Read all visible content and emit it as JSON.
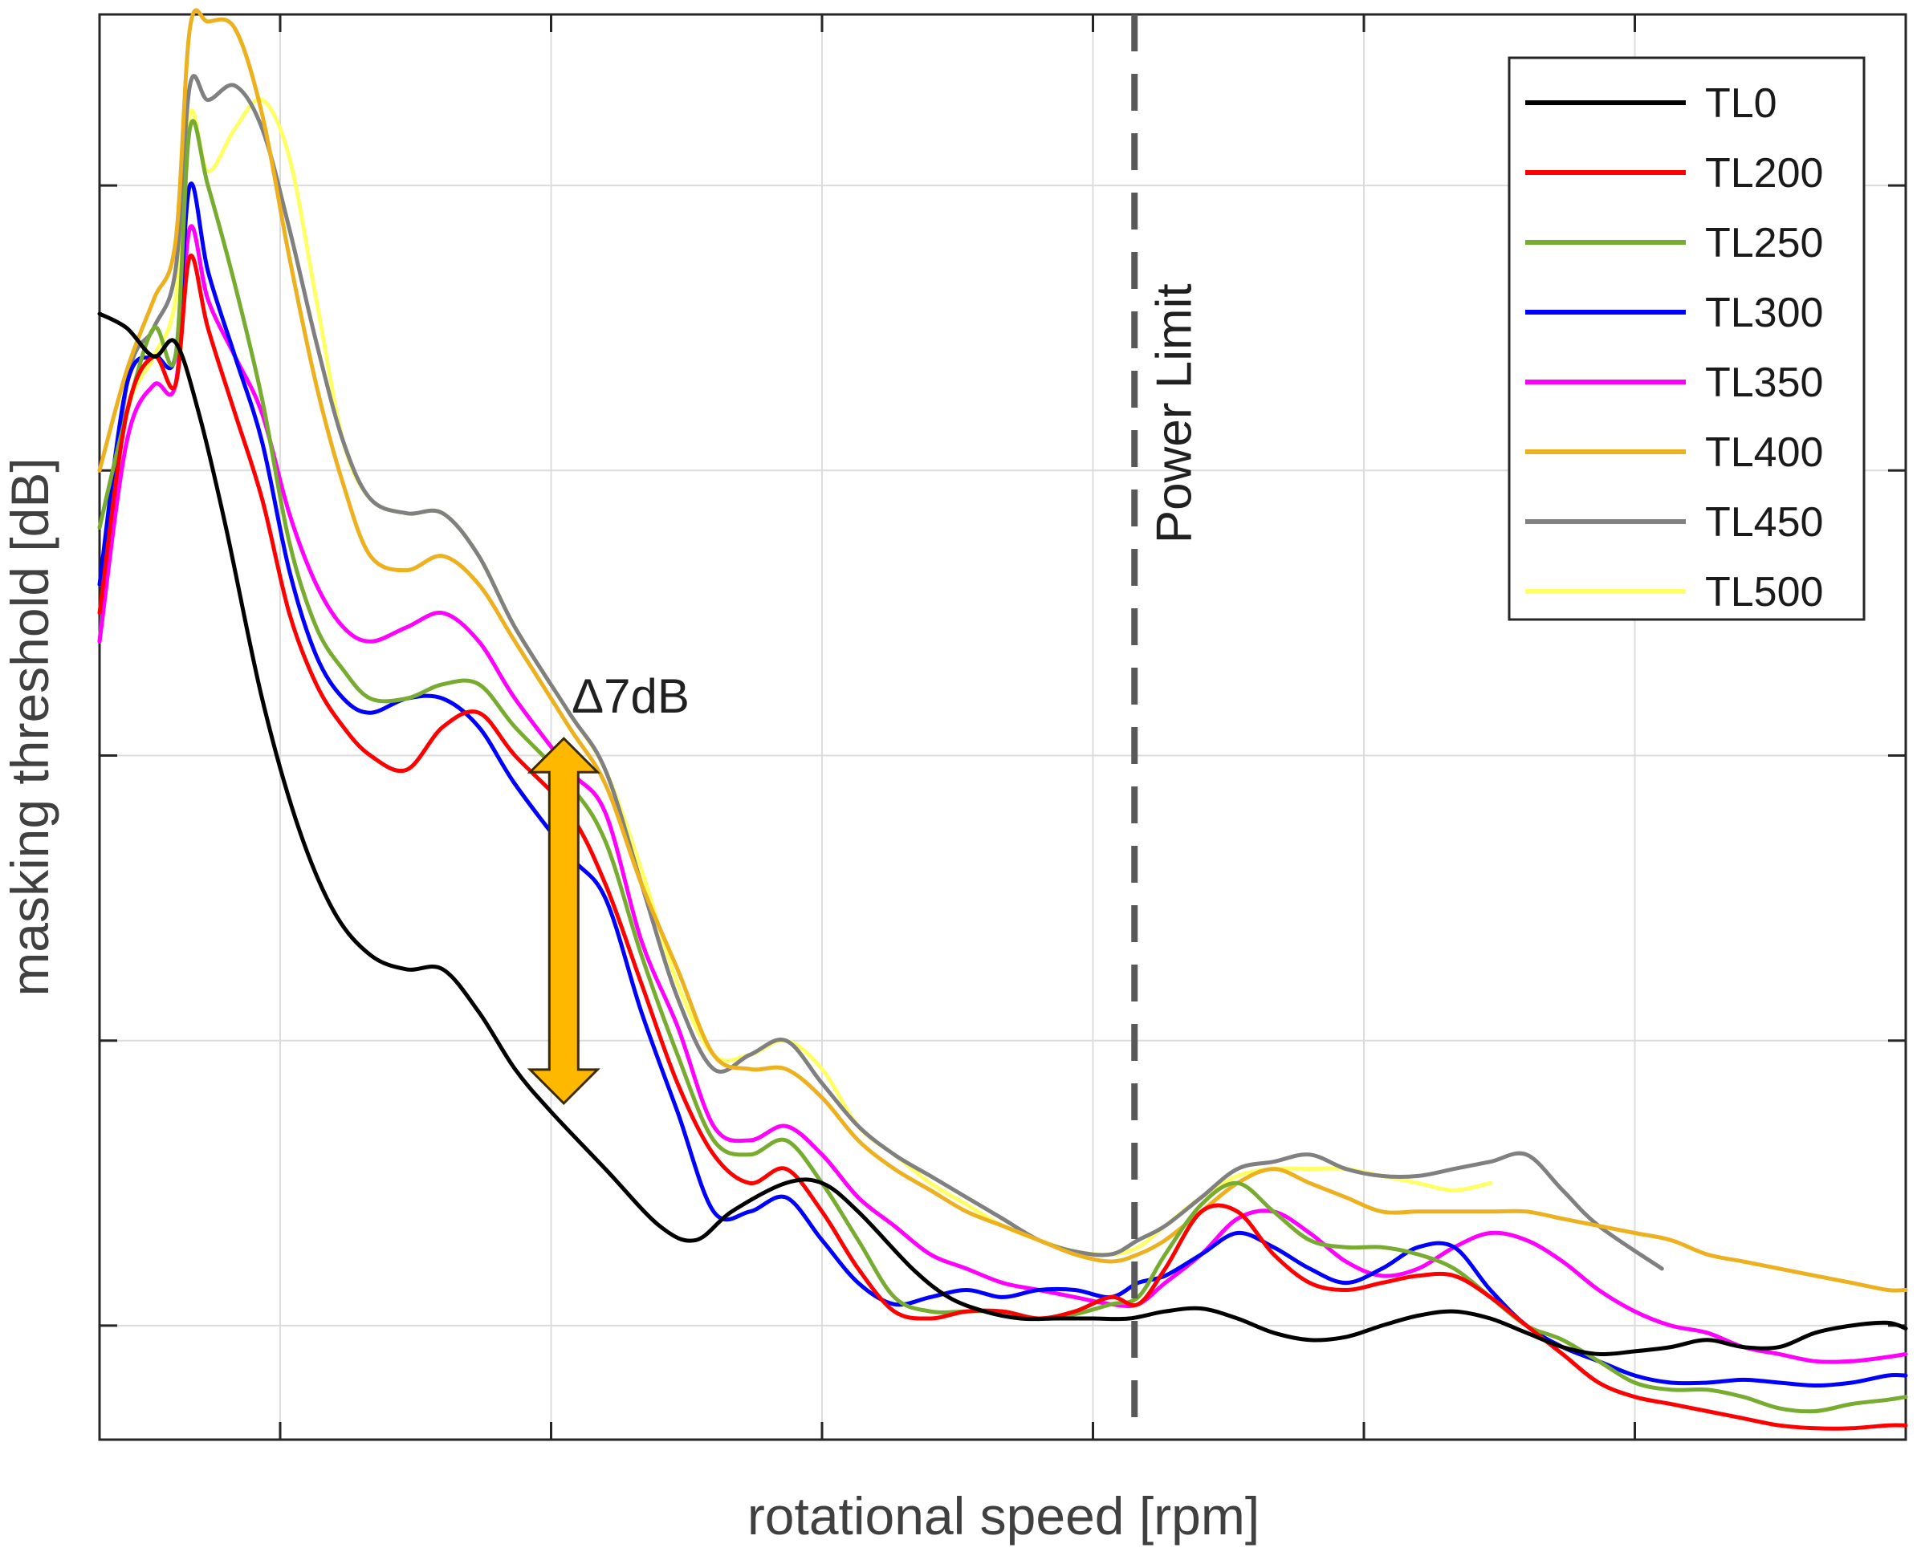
{
  "chart_data": {
    "type": "line",
    "title": "",
    "xlabel": "rotational speed [rpm]",
    "ylabel": "masking threshold [dB]",
    "xlim": [
      0,
      100
    ],
    "ylim": [
      0,
      100
    ],
    "grid": true,
    "tick_labels_visible": false,
    "x_grid": [
      10,
      25,
      40,
      55,
      70,
      85
    ],
    "y_grid": [
      8,
      28,
      48,
      68,
      88
    ],
    "legend_position": "top-right",
    "annotations": {
      "delta": "Δ7dB",
      "power_limit": "Power Limit",
      "power_limit_x": 57.3,
      "arrow_top": 49.2,
      "arrow_bottom": 23.6,
      "arrow_x": 25.7,
      "arrow_color": "#FFB800"
    },
    "series": [
      {
        "name": "TL0",
        "color": "#000000",
        "x": [
          0,
          1.5,
          3,
          4.2,
          5.5,
          7,
          9,
          11,
          13,
          15,
          17,
          19,
          21,
          23,
          25,
          28,
          31,
          33,
          35,
          38,
          40,
          42,
          45,
          47,
          49,
          51,
          53,
          55,
          57,
          59,
          61,
          63,
          65,
          67,
          69,
          71,
          73,
          75,
          77,
          79,
          81,
          83,
          85,
          87,
          89,
          91,
          93,
          95,
          97,
          99,
          100
        ],
        "y": [
          79,
          78,
          76,
          77,
          72,
          64,
          52,
          43,
          37,
          34,
          33,
          33,
          30,
          26,
          23,
          19,
          15,
          14,
          16,
          18,
          18,
          16,
          12,
          10,
          9,
          8.5,
          8.5,
          8.5,
          8.5,
          9,
          9.2,
          8.5,
          7.5,
          7,
          7.2,
          8,
          8.7,
          9,
          8.5,
          7.5,
          6.5,
          6,
          6.2,
          6.5,
          7,
          6.5,
          6.5,
          7.5,
          8,
          8.2,
          7.8
        ]
      },
      {
        "name": "TL200",
        "color": "#FF0000",
        "x": [
          0,
          1.5,
          3,
          4.2,
          5,
          6,
          7.5,
          9,
          10.5,
          12,
          13.5,
          15,
          17,
          19,
          21,
          23,
          26,
          28,
          30,
          32,
          34,
          36,
          38,
          40,
          42,
          44,
          46,
          48,
          50,
          52,
          54,
          56,
          57.5,
          59,
          61,
          63,
          65,
          67,
          69,
          71,
          73,
          75,
          77,
          79,
          81,
          83,
          85,
          87,
          89,
          91,
          93,
          95,
          97,
          99,
          100
        ],
        "y": [
          58,
          72,
          76,
          74,
          83,
          78,
          72,
          66,
          58,
          53,
          50,
          48,
          47,
          50,
          51,
          48,
          44,
          39,
          32,
          25,
          20,
          18,
          19,
          16,
          12,
          9,
          8.5,
          9,
          9,
          8.5,
          9,
          10,
          9.5,
          12,
          16,
          16,
          13,
          11,
          10.5,
          11,
          11.5,
          11.5,
          10,
          8,
          6,
          4,
          3,
          2.5,
          2,
          1.5,
          1,
          0.8,
          0.8,
          1,
          1
        ]
      },
      {
        "name": "TL250",
        "color": "#77AC30",
        "x": [
          0,
          1.5,
          3,
          4.2,
          5,
          6,
          7.5,
          9,
          10.5,
          12,
          13.5,
          15,
          17,
          19,
          21,
          23,
          26,
          28,
          30,
          32,
          34,
          36,
          38,
          40,
          42,
          44,
          46,
          48,
          50,
          52,
          54,
          56,
          57.5,
          59,
          61,
          63,
          65,
          67,
          69,
          71,
          73,
          75,
          77,
          79,
          81,
          83,
          85,
          87,
          89,
          91,
          93,
          95,
          97,
          99,
          100
        ],
        "y": [
          64,
          72,
          78,
          76,
          92,
          88,
          81,
          73,
          63,
          57,
          54,
          52,
          52,
          53,
          53,
          50,
          46,
          42,
          34,
          27,
          21,
          20,
          21,
          18,
          14,
          10,
          9,
          9,
          9,
          8.5,
          8.8,
          9.5,
          10,
          13,
          16.5,
          18,
          16,
          14,
          13.5,
          13.5,
          13,
          12,
          10,
          8,
          7,
          5.5,
          4,
          3.5,
          3.5,
          3,
          2.2,
          2,
          2.5,
          2.8,
          3
        ]
      },
      {
        "name": "TL300",
        "color": "#0000FF",
        "x": [
          0,
          1.5,
          3,
          4.2,
          5,
          6,
          7.5,
          9,
          10.5,
          12,
          13.5,
          15,
          17,
          19,
          21,
          23,
          26,
          28,
          30,
          32,
          34,
          36,
          38,
          40,
          42,
          44,
          46,
          48,
          50,
          52,
          54,
          56,
          57.5,
          59,
          61,
          63,
          65,
          67,
          69,
          71,
          73,
          75,
          77,
          79,
          81,
          83,
          85,
          87,
          89,
          91,
          93,
          95,
          97,
          99,
          100
        ],
        "y": [
          60,
          74,
          76,
          76,
          88,
          82,
          76,
          70,
          61,
          55,
          52,
          51,
          52,
          52,
          50,
          46,
          41,
          38,
          30,
          23,
          16,
          16,
          17,
          14,
          11,
          9.5,
          10,
          10.5,
          10,
          10.5,
          10.5,
          10,
          11,
          11.5,
          13,
          14.5,
          13.5,
          12,
          11,
          12,
          13.5,
          13.5,
          10.5,
          8,
          6.5,
          5.5,
          4.5,
          4,
          4,
          4.2,
          4,
          3.8,
          4,
          4.5,
          4.5
        ]
      },
      {
        "name": "TL350",
        "color": "#FF00FF",
        "x": [
          0,
          1.5,
          3,
          4.2,
          5,
          6,
          7.5,
          9,
          10.5,
          12,
          13.5,
          15,
          17,
          19,
          21,
          23,
          26,
          28,
          30,
          32,
          34,
          36,
          38,
          40,
          42,
          44,
          46,
          48,
          50,
          52,
          54,
          56,
          57.5,
          59,
          61,
          63,
          65,
          67,
          69,
          71,
          73,
          75,
          77,
          79,
          81,
          83,
          85,
          87,
          89,
          91,
          93,
          95,
          97,
          99,
          100
        ],
        "y": [
          56,
          70,
          74,
          74,
          85,
          80,
          76,
          72,
          65,
          60,
          57,
          56,
          57,
          58,
          56,
          52,
          47,
          44,
          35,
          29,
          22,
          21,
          22,
          20,
          17,
          15,
          13,
          12,
          11,
          10.5,
          10,
          9.5,
          9.5,
          11,
          13,
          15.5,
          16,
          14.5,
          12.5,
          11.5,
          12,
          13.5,
          14.5,
          14,
          12.5,
          10.5,
          9,
          8,
          7.5,
          6.5,
          6,
          5.5,
          5.5,
          5.8,
          6
        ]
      },
      {
        "name": "TL400",
        "color": "#EDB120",
        "x": [
          0,
          1.5,
          3,
          4.2,
          5,
          6,
          7.5,
          9,
          10.5,
          12,
          13.5,
          15,
          17,
          19,
          21,
          23,
          26,
          28,
          30,
          32,
          34,
          36,
          38,
          40,
          42,
          44,
          46,
          48,
          50,
          52,
          54,
          56,
          57.5,
          59,
          61,
          63,
          65,
          67,
          69,
          71,
          73,
          75,
          77,
          79,
          81,
          83,
          85,
          87,
          89,
          91,
          93,
          95,
          97,
          99,
          100
        ],
        "y": [
          68,
          75,
          80,
          84,
          99,
          99.5,
          99,
          93,
          83,
          74,
          67,
          62,
          61,
          62,
          60,
          56,
          50,
          46,
          39,
          33,
          27,
          26,
          26,
          24,
          21,
          19,
          17.5,
          16,
          15,
          14,
          13,
          12.5,
          13,
          14,
          16,
          18,
          19,
          18,
          17,
          16,
          16,
          16,
          16,
          16,
          15.5,
          15,
          14.5,
          14,
          13,
          12.5,
          12,
          11.5,
          11,
          10.5,
          10.5
        ]
      },
      {
        "name": "TL450",
        "color": "#808080",
        "x": [
          0,
          1.5,
          3,
          4.2,
          5,
          6,
          7.5,
          9,
          10.5,
          12,
          13.5,
          15,
          17,
          19,
          21,
          23,
          26,
          28,
          30,
          32,
          34,
          36,
          38,
          40,
          42,
          44,
          46,
          48,
          50,
          52,
          54,
          56,
          57.5,
          59,
          61,
          63,
          65,
          67,
          69,
          71,
          73,
          75,
          77,
          79,
          81,
          83,
          86.5
        ],
        "y": [
          56,
          74,
          78,
          82,
          95,
          94,
          95,
          92,
          85,
          77,
          70,
          66,
          65,
          65,
          62,
          57,
          51,
          47,
          39,
          31,
          26,
          27,
          28,
          25,
          22,
          20,
          18.5,
          17,
          15.5,
          14,
          13.2,
          13,
          14,
          15,
          17,
          19,
          19.5,
          20,
          19,
          18.5,
          18.5,
          19,
          19.5,
          20,
          17.5,
          15,
          12
        ]
      },
      {
        "name": "TL500",
        "color": "#FFFF66",
        "x": [
          0,
          1.5,
          3,
          4.2,
          5,
          6,
          7.5,
          9,
          10.5,
          12,
          13.5,
          15,
          17,
          19,
          21,
          23,
          26,
          28,
          30,
          32,
          34,
          36,
          38,
          40,
          42,
          44,
          46,
          48,
          50,
          52,
          54,
          56,
          57.5,
          59,
          61,
          63,
          65,
          67,
          69,
          71,
          73,
          75,
          77
        ],
        "y": [
          60,
          72,
          76,
          80,
          93,
          89,
          92,
          94,
          90,
          80,
          70,
          66,
          65,
          65,
          62,
          57,
          51,
          47,
          40,
          32,
          27,
          27,
          28,
          26,
          22,
          20,
          18,
          16.5,
          15,
          14,
          13.2,
          13,
          13.5,
          15,
          17,
          18.5,
          19,
          19,
          19,
          18.5,
          18,
          17.5,
          18
        ]
      }
    ]
  }
}
